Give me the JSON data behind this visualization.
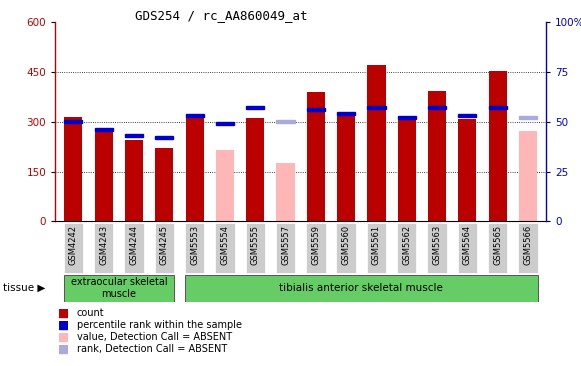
{
  "title": "GDS254 / rc_AA860049_at",
  "samples": [
    "GSM4242",
    "GSM4243",
    "GSM4244",
    "GSM4245",
    "GSM5553",
    "GSM5554",
    "GSM5555",
    "GSM5557",
    "GSM5559",
    "GSM5560",
    "GSM5561",
    "GSM5562",
    "GSM5563",
    "GSM5564",
    "GSM5565",
    "GSM5566"
  ],
  "red_values": [
    315,
    282,
    245,
    222,
    318,
    null,
    312,
    null,
    390,
    317,
    470,
    305,
    393,
    307,
    453,
    null
  ],
  "pink_values": [
    null,
    null,
    null,
    null,
    null,
    215,
    null,
    175,
    null,
    null,
    null,
    null,
    null,
    null,
    null,
    273
  ],
  "blue_values": [
    50,
    46,
    43,
    42,
    53,
    49,
    57,
    null,
    56,
    54,
    57,
    52,
    57,
    53,
    57,
    null
  ],
  "light_blue_values": [
    null,
    null,
    null,
    null,
    null,
    null,
    null,
    50,
    null,
    null,
    null,
    null,
    null,
    null,
    null,
    52
  ],
  "ylim_left": [
    0,
    600
  ],
  "ylim_right": [
    0,
    100
  ],
  "yticks_left": [
    0,
    150,
    300,
    450,
    600
  ],
  "yticks_right": [
    0,
    25,
    50,
    75,
    100
  ],
  "ytick_labels_right": [
    "0",
    "25",
    "50",
    "75",
    "100%"
  ],
  "red_color": "#BB0000",
  "pink_color": "#FFB6B6",
  "blue_color": "#0000CC",
  "light_blue_color": "#AAAADD",
  "tissue_label1": "extraocular skeletal\nmuscle",
  "tissue_label2": "tibialis anterior skeletal muscle",
  "tissue_bg_color": "#66CC66",
  "xticklabel_bg": "#CCCCCC",
  "bar_width": 0.6
}
